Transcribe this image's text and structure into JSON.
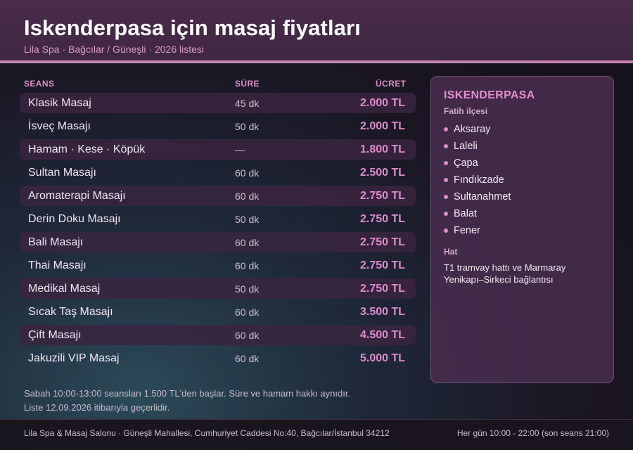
{
  "header": {
    "title": "Iskenderpasa için masaj fiyatları",
    "subtitle": "Lila Spa · Bağcılar / Güneşli · 2026 listesi"
  },
  "table": {
    "columns": {
      "session": "SEANS",
      "duration": "SÜRE",
      "price": "ÜCRET"
    },
    "rows": [
      {
        "name": "Klasik Masaj",
        "duration": "45 dk",
        "price": "2.000 TL"
      },
      {
        "name": "İsveç Masajı",
        "duration": "50 dk",
        "price": "2.000 TL"
      },
      {
        "name": "Hamam · Kese · Köpük",
        "duration": "—",
        "price": "1.800 TL"
      },
      {
        "name": "Sultan Masajı",
        "duration": "60 dk",
        "price": "2.500 TL"
      },
      {
        "name": "Aromaterapi Masajı",
        "duration": "60 dk",
        "price": "2.750 TL"
      },
      {
        "name": "Derin Doku Masajı",
        "duration": "50 dk",
        "price": "2.750 TL"
      },
      {
        "name": "Bali Masajı",
        "duration": "60 dk",
        "price": "2.750 TL"
      },
      {
        "name": "Thai Masajı",
        "duration": "60 dk",
        "price": "2.750 TL"
      },
      {
        "name": "Medikal Masaj",
        "duration": "50 dk",
        "price": "2.750 TL"
      },
      {
        "name": "Sıcak Taş Masajı",
        "duration": "60 dk",
        "price": "3.500 TL"
      },
      {
        "name": "Çift Masajı",
        "duration": "60 dk",
        "price": "4.500 TL"
      },
      {
        "name": "Jakuzili VIP Masaj",
        "duration": "60 dk",
        "price": "5.000 TL"
      }
    ]
  },
  "notes": {
    "line1": "Sabah 10:00-13:00 seansları 1.500 TL'den başlar. Süre ve hamam hakkı aynıdır.",
    "line2": "Liste 12.09.2026 itibarıyla geçerlidir."
  },
  "panel": {
    "title": "ISKENDERPASA",
    "district": "Fatih ilçesi",
    "neighborhoods": [
      "Aksaray",
      "Laleli",
      "Çapa",
      "Fındıkzade",
      "Sultanahmet",
      "Balat",
      "Fener"
    ],
    "transit_heading": "Hat",
    "transit_text": "T1 tramvay hattı ve Marmaray Yenikapı–Sirkeci bağlantısı"
  },
  "footer": {
    "address": "Lila Spa & Masaj Salonu · Güneşli Mahallesi, Cumhuriyet Caddesi No:40, Bağcılar/İstanbul 34212",
    "hours": "Her gün 10:00 - 22:00 (son seans 21:00)"
  },
  "colors": {
    "accent": "#d88ec6",
    "header_bg": "#4a2c4c",
    "header_rule": "#c984b8",
    "price": "#dd8ccc"
  }
}
